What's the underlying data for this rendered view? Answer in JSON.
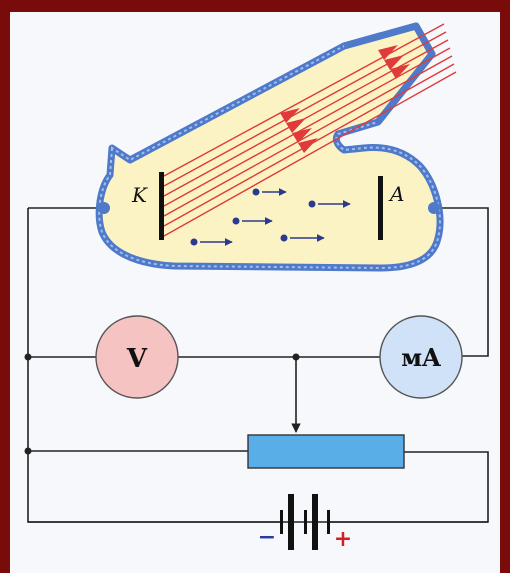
{
  "labels": {
    "cathode": "K",
    "anode": "A",
    "voltmeter": "V",
    "milliammeter": "мA",
    "battery_negative": "−",
    "battery_positive": "+"
  },
  "colors": {
    "border": "#7a0b0b",
    "background": "#f6f8fb",
    "tube_outline": "#4f79c9",
    "tube_fill": "#fbf3c3",
    "light_rays": "#e03a3a",
    "electrons": "#2a3b8f",
    "wire": "#222222",
    "voltmeter_fill": "#f6c3c3",
    "milliammeter_fill": "#cfe2f7",
    "rheostat_fill": "#5aaee8",
    "negative_sign": "#2b3aa8",
    "positive_sign": "#d42020"
  }
}
